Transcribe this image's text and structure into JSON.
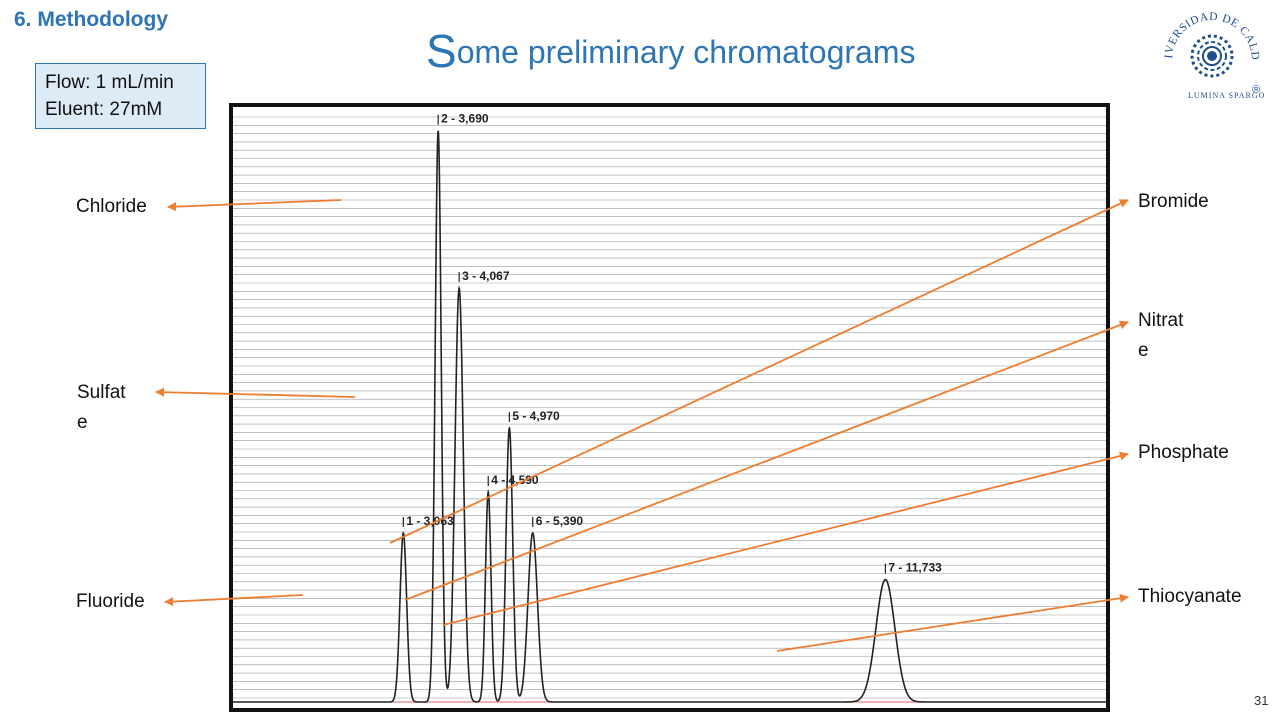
{
  "section": "6. Methodology",
  "title": {
    "first_letter": "S",
    "rest": "ome preliminary chromatograms"
  },
  "conditions": [
    "Flow: 1 mL/min",
    "Eluent: 27mM"
  ],
  "page_number": "31",
  "logo": {
    "arc_text": "UNIVERSIDAD DE CALDAS",
    "motto": "LUMINA SPARGO",
    "registered": "®",
    "colors": {
      "primary": "#1F4E8C"
    }
  },
  "labels": {
    "chloride": "Chloride",
    "sulfate": [
      "Sulfat",
      "e"
    ],
    "fluoride": "Fluoride",
    "bromide": "Bromide",
    "nitrate": [
      "Nitrat",
      "e"
    ],
    "phosphate": "Phosphate",
    "thiocyanate": "Thiocyanate"
  },
  "colors": {
    "accent": "#2E75B6",
    "arrow": "#ED7D31",
    "trace": "#222222",
    "grid": "#9a9a9a",
    "box_fill": "#DDEBF7"
  },
  "chart_data": {
    "type": "line",
    "title": "",
    "xlabel": "",
    "ylabel": "",
    "xlim": [
      0,
      15.7
    ],
    "ylim": [
      0,
      100
    ],
    "peaks": [
      {
        "number": 1,
        "retention_time": 3.063,
        "label": "1 - 3,063",
        "height": 29,
        "width": 0.06
      },
      {
        "number": 2,
        "retention_time": 3.69,
        "label": "2 - 3,690",
        "height": 98,
        "width": 0.055
      },
      {
        "number": 3,
        "retention_time": 4.067,
        "label": "3 - 4,067",
        "height": 71,
        "width": 0.075
      },
      {
        "number": 4,
        "retention_time": 4.59,
        "label": "4 - 4,590",
        "height": 36,
        "width": 0.05
      },
      {
        "number": 5,
        "retention_time": 4.97,
        "label": "5 - 4,970",
        "height": 47,
        "width": 0.06
      },
      {
        "number": 6,
        "retention_time": 5.39,
        "label": "6 - 5,390",
        "height": 29,
        "width": 0.085
      },
      {
        "number": 7,
        "retention_time": 11.733,
        "label": "7 - 11,733",
        "height": 21,
        "width": 0.17
      }
    ],
    "grid": true
  }
}
